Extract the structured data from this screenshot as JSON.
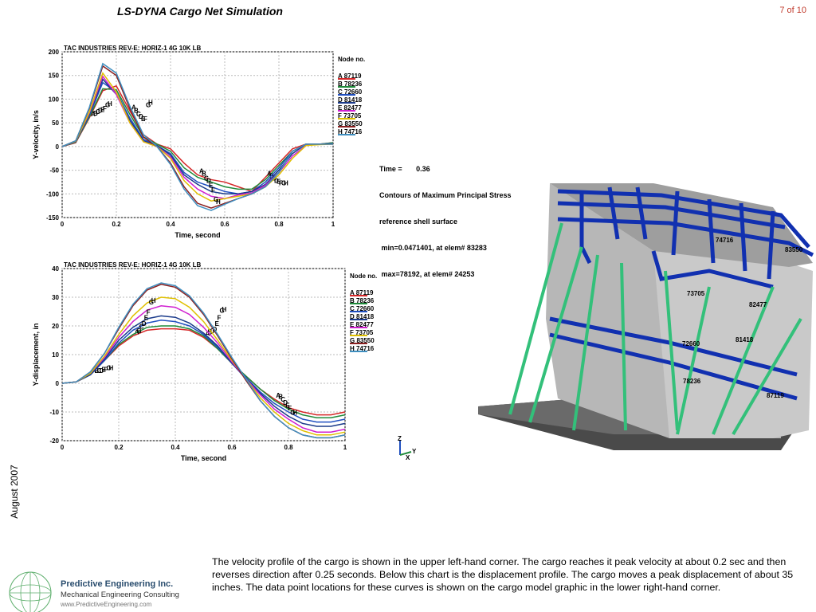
{
  "slide": {
    "title": "LS-DYNA Cargo Net Simulation",
    "page": "7 of 10",
    "date": "August  2007",
    "caption": "The velocity profile of the cargo is shown in the upper left-hand corner.  The cargo reaches it peak velocity at about 0.2 sec and then reverses direction after 0.25 seconds.  Below this chart is the displacement profile.  The cargo moves a peak displacement of about 35 inches.  The data point locations for these curves is shown on the cargo model graphic in the lower right-hand corner."
  },
  "logo": {
    "name": "Predictive Engineering Inc.",
    "subtitle": "Mechanical Engineering Consulting",
    "url": "www.PredictiveEngineering.com"
  },
  "model": {
    "info_lines": [
      "Time =       0.36",
      "Contours of Maximum Principal Stress",
      "reference shell surface",
      " min=0.0471401, at elem# 83283",
      " max=78192, at elem# 24253"
    ],
    "node_labels": [
      "74716",
      "83550",
      "73705",
      "82477",
      "72660",
      "81418",
      "78236",
      "87119"
    ],
    "axis_labels": {
      "z": "Z",
      "y": "Y",
      "x": "X"
    }
  },
  "chart_data": [
    {
      "type": "line",
      "title": "TAC INDUSTRIES REV-E: HORIZ-1 4G 10K LB",
      "xlabel": "Time, second",
      "ylabel": "Y-velocity, in/s",
      "xlim": [
        0,
        1
      ],
      "ylim": [
        -150,
        200
      ],
      "xticks": [
        "0",
        "0.2",
        "0.4",
        "0.6",
        "0.8",
        "1"
      ],
      "yticks": [
        "200",
        "150",
        "100",
        "50",
        "0",
        "-50",
        "-100",
        "-150"
      ],
      "grid": true,
      "legend_title": "Node no.",
      "legend_position": "right",
      "x": [
        0,
        0.05,
        0.1,
        0.15,
        0.2,
        0.25,
        0.3,
        0.35,
        0.4,
        0.45,
        0.5,
        0.55,
        0.6,
        0.65,
        0.7,
        0.75,
        0.8,
        0.85,
        0.9,
        0.95,
        1.0
      ],
      "series": [
        {
          "name": "A  87119",
          "marker": "A",
          "color": "#d62728",
          "values": [
            0,
            8,
            60,
            118,
            128,
            75,
            25,
            5,
            -5,
            -35,
            -60,
            -70,
            -75,
            -85,
            -95,
            -65,
            -35,
            -5,
            5,
            5,
            8
          ]
        },
        {
          "name": "B  78236",
          "marker": "B",
          "color": "#1f8a3a",
          "values": [
            0,
            9,
            62,
            122,
            120,
            68,
            20,
            5,
            -10,
            -45,
            -65,
            -75,
            -85,
            -90,
            -90,
            -70,
            -40,
            -10,
            5,
            5,
            8
          ]
        },
        {
          "name": "C  72660",
          "marker": "C",
          "color": "#1f4fc0",
          "values": [
            0,
            10,
            65,
            135,
            115,
            60,
            15,
            2,
            -15,
            -55,
            -75,
            -85,
            -95,
            -100,
            -95,
            -75,
            -45,
            -10,
            5,
            5,
            6
          ]
        },
        {
          "name": "D  81418",
          "marker": "D",
          "color": "#1a3a8a",
          "values": [
            0,
            10,
            68,
            142,
            110,
            55,
            12,
            2,
            -18,
            -60,
            -80,
            -95,
            -100,
            -100,
            -95,
            -80,
            -50,
            -15,
            5,
            5,
            6
          ]
        },
        {
          "name": "E  82477",
          "marker": "E",
          "color": "#d020d0",
          "values": [
            0,
            11,
            70,
            148,
            110,
            50,
            10,
            0,
            -22,
            -65,
            -90,
            -105,
            -110,
            -102,
            -98,
            -82,
            -55,
            -20,
            2,
            5,
            5
          ]
        },
        {
          "name": "F  73705",
          "marker": "F",
          "color": "#e0c000",
          "values": [
            0,
            11,
            72,
            155,
            115,
            50,
            10,
            0,
            -25,
            -72,
            -100,
            -115,
            -110,
            -105,
            -100,
            -85,
            -60,
            -25,
            2,
            4,
            5
          ]
        },
        {
          "name": "G  83550",
          "marker": "G",
          "color": "#8a1f1f",
          "values": [
            0,
            12,
            80,
            170,
            150,
            80,
            20,
            0,
            -35,
            -85,
            -120,
            -130,
            -120,
            -110,
            -100,
            -85,
            -55,
            -10,
            5,
            5,
            5
          ]
        },
        {
          "name": "H  74716",
          "marker": "H",
          "color": "#3f8fc0",
          "values": [
            0,
            12,
            82,
            175,
            155,
            85,
            25,
            0,
            -38,
            -90,
            -125,
            -135,
            -122,
            -110,
            -100,
            -85,
            -55,
            -10,
            5,
            5,
            5
          ]
        }
      ]
    },
    {
      "type": "line",
      "title": "TAC INDUSTRIES REV-E: HORIZ-1 4G 10K LB",
      "xlabel": "Time, second",
      "ylabel": "Y-displacement, in",
      "xlim": [
        0,
        1
      ],
      "ylim": [
        -20,
        40
      ],
      "xticks": [
        "0",
        "0.2",
        "0.4",
        "0.6",
        "0.8",
        "1"
      ],
      "yticks": [
        "40",
        "30",
        "20",
        "10",
        "0",
        "-10",
        "-20"
      ],
      "grid": true,
      "legend_title": "Node no.",
      "legend_position": "right",
      "x": [
        0,
        0.05,
        0.1,
        0.15,
        0.2,
        0.25,
        0.3,
        0.35,
        0.4,
        0.45,
        0.5,
        0.55,
        0.6,
        0.65,
        0.7,
        0.75,
        0.8,
        0.85,
        0.9,
        0.95,
        1.0
      ],
      "series": [
        {
          "name": "A  87119",
          "marker": "A",
          "color": "#d62728",
          "values": [
            0,
            0.5,
            3,
            8,
            13,
            16.5,
            18.5,
            19,
            19,
            18.5,
            16,
            12,
            7,
            2.5,
            -2,
            -5.5,
            -8.5,
            -10,
            -11,
            -11,
            -10
          ]
        },
        {
          "name": "B  78236",
          "marker": "B",
          "color": "#1f8a3a",
          "values": [
            0,
            0.5,
            3,
            8,
            13.5,
            17,
            19.5,
            20,
            20,
            19,
            16.5,
            12,
            7,
            2.5,
            -2,
            -6,
            -9,
            -11,
            -12,
            -12,
            -11
          ]
        },
        {
          "name": "C  72660",
          "marker": "C",
          "color": "#1f4fc0",
          "values": [
            0,
            0.5,
            3,
            8,
            14,
            18.5,
            21,
            22,
            21.5,
            20,
            17,
            12.5,
            7,
            2,
            -3,
            -7,
            -10,
            -12.5,
            -13.5,
            -13.5,
            -12.5
          ]
        },
        {
          "name": "D  81418",
          "marker": "D",
          "color": "#1a3a8a",
          "values": [
            0,
            0.5,
            3,
            8.5,
            15,
            19.5,
            22.5,
            23.5,
            23,
            21,
            17.5,
            13,
            7,
            1.5,
            -3.5,
            -8,
            -11.5,
            -14,
            -15,
            -15,
            -14
          ]
        },
        {
          "name": "E  82477",
          "marker": "E",
          "color": "#d020d0",
          "values": [
            0,
            0.5,
            3.5,
            9,
            16,
            21.5,
            25.5,
            27,
            26.5,
            24,
            19.5,
            14,
            7.5,
            1.5,
            -4,
            -9,
            -12.5,
            -15.5,
            -17,
            -17,
            -16
          ]
        },
        {
          "name": "F  73705",
          "marker": "F",
          "color": "#e0c000",
          "values": [
            0,
            0.5,
            3.5,
            9.5,
            17,
            23.5,
            28,
            30,
            29.5,
            26.5,
            21.5,
            15,
            8,
            1.5,
            -5,
            -10,
            -14,
            -16.5,
            -18,
            -18,
            -17
          ]
        },
        {
          "name": "G  83550",
          "marker": "G",
          "color": "#8a1f1f",
          "values": [
            0,
            0.5,
            4,
            10.5,
            19,
            27,
            32.5,
            34.5,
            33.5,
            30,
            24,
            16.5,
            8.5,
            1,
            -6,
            -11.5,
            -15.5,
            -18,
            -19,
            -19,
            -18
          ]
        },
        {
          "name": "H  74716",
          "marker": "H",
          "color": "#3f8fc0",
          "values": [
            0,
            0.5,
            4,
            10.5,
            19.5,
            27.5,
            33,
            35,
            34,
            30.5,
            24.5,
            17,
            9,
            1.5,
            -6,
            -11.5,
            -15.5,
            -18,
            -19,
            -19,
            -18
          ]
        }
      ]
    }
  ]
}
